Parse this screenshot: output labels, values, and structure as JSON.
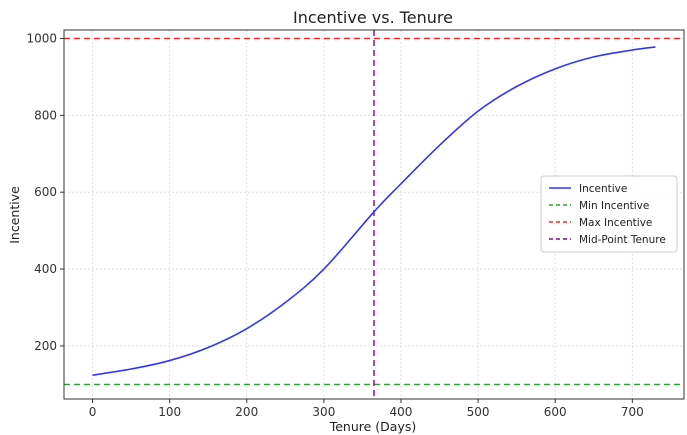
{
  "chart_data": {
    "type": "line",
    "title": "Incentive vs. Tenure",
    "xlabel": "Tenure (Days)",
    "ylabel": "Incentive",
    "xlim": [
      -37,
      767
    ],
    "ylim": [
      62,
      1022
    ],
    "xticks": [
      0,
      100,
      200,
      300,
      400,
      500,
      600,
      700
    ],
    "yticks": [
      200,
      400,
      600,
      800,
      1000
    ],
    "grid": true,
    "legend_position": "center-right",
    "series": [
      {
        "name": "Incentive",
        "style": "solid",
        "color": "#3333ff",
        "x": [
          0,
          50,
          100,
          150,
          200,
          250,
          300,
          365,
          400,
          450,
          500,
          550,
          600,
          650,
          700,
          730
        ],
        "y": [
          124,
          140,
          162,
          196,
          245,
          313,
          400,
          549,
          622,
          722,
          811,
          875,
          921,
          952,
          970,
          978
        ]
      },
      {
        "name": "Min Incentive",
        "style": "dashed",
        "color": "#2ca02c",
        "orientation": "horizontal",
        "value": 100
      },
      {
        "name": "Max Incentive",
        "style": "dashed",
        "color": "#ff2222",
        "orientation": "horizontal",
        "value": 1000
      },
      {
        "name": "Mid-Point Tenure",
        "style": "dashed",
        "color": "#8b008b",
        "orientation": "vertical",
        "value": 365
      }
    ]
  }
}
